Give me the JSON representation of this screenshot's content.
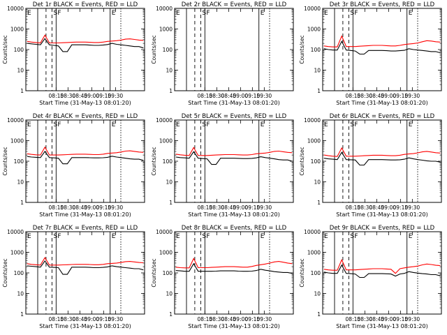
{
  "chart_data": [
    {
      "type": "line",
      "title": "Det 1r BLACK = Events, RED = LLD",
      "ylabel": "Counts/sec",
      "xlabel": "Start Time (31-May-13 08:01:20)",
      "yscale": "log",
      "ylim": [
        1,
        10000
      ],
      "xticks": [
        "08:15",
        "08:30",
        "08:45",
        "09:00",
        "09:15",
        "09:30"
      ],
      "yticks": [
        "1",
        "10",
        "100",
        "1000",
        "10000"
      ],
      "markers": [
        "E",
        "S",
        "F",
        "E"
      ],
      "series": [
        {
          "color": "#000000",
          "values": [
            200,
            190,
            180,
            170,
            340,
            170,
            160,
            150,
            80,
            80,
            170,
            170,
            170,
            170,
            165,
            160,
            160,
            165,
            175,
            200,
            180,
            170,
            160,
            150,
            140,
            140,
            120
          ]
        },
        {
          "color": "#ff0000",
          "values": [
            250,
            230,
            220,
            210,
            500,
            210,
            210,
            210,
            215,
            220,
            225,
            230,
            230,
            230,
            225,
            220,
            220,
            230,
            250,
            260,
            270,
            290,
            320,
            330,
            310,
            290,
            280
          ]
        }
      ]
    },
    {
      "type": "line",
      "title": "Det 2r BLACK = Events, RED = LLD",
      "ylabel": "Counts/sec",
      "xlabel": "Start Time (31-May-13 08:01:20)",
      "yscale": "log",
      "ylim": [
        1,
        10000
      ],
      "xticks": [
        "08:15",
        "08:30",
        "08:45",
        "09:00",
        "09:15",
        "09:30"
      ],
      "yticks": [
        "1",
        "10",
        "100",
        "1000",
        "10000"
      ],
      "markers": [
        "E",
        "S",
        "F",
        "E"
      ],
      "series": []
    },
    {
      "type": "line",
      "title": "Det 3r BLACK = Events, RED = LLD",
      "ylabel": "Counts/sec",
      "xlabel": "Start Time (31-May-13 08:01:20)",
      "yscale": "log",
      "ylim": [
        1,
        10000
      ],
      "xticks": [
        "08:15",
        "08:30",
        "08:45",
        "09:00",
        "09:15",
        "09:30"
      ],
      "yticks": [
        "1",
        "10",
        "100",
        "1000",
        "10000"
      ],
      "markers": [
        "E",
        "S",
        "F",
        "E"
      ],
      "series": [
        {
          "color": "#000000",
          "values": [
            110,
            100,
            95,
            95,
            250,
            95,
            90,
            85,
            60,
            60,
            90,
            90,
            90,
            90,
            88,
            85,
            85,
            88,
            92,
            110,
            100,
            95,
            90,
            85,
            80,
            80,
            70
          ]
        },
        {
          "color": "#ff0000",
          "values": [
            150,
            140,
            135,
            135,
            450,
            140,
            140,
            140,
            145,
            150,
            155,
            160,
            160,
            160,
            155,
            150,
            150,
            160,
            175,
            185,
            195,
            210,
            240,
            270,
            260,
            240,
            230
          ]
        }
      ]
    },
    {
      "type": "line",
      "title": "Det 4r BLACK = Events, RED = LLD",
      "ylabel": "Counts/sec",
      "xlabel": "Start Time (31-May-13 08:01:20)",
      "yscale": "log",
      "ylim": [
        1,
        10000
      ],
      "xticks": [
        "08:15",
        "08:30",
        "08:45",
        "09:00",
        "09:15",
        "09:30"
      ],
      "yticks": [
        "1",
        "10",
        "100",
        "1000",
        "10000"
      ],
      "markers": [
        "E",
        "S",
        "F",
        "E"
      ],
      "series": [
        {
          "color": "#000000",
          "values": [
            170,
            160,
            155,
            150,
            300,
            150,
            145,
            140,
            75,
            75,
            150,
            150,
            150,
            150,
            148,
            145,
            145,
            148,
            155,
            175,
            160,
            150,
            140,
            130,
            125,
            125,
            110
          ]
        },
        {
          "color": "#ff0000",
          "values": [
            230,
            215,
            205,
            200,
            480,
            200,
            200,
            200,
            205,
            210,
            215,
            220,
            220,
            220,
            215,
            210,
            210,
            220,
            240,
            250,
            260,
            280,
            310,
            320,
            300,
            280,
            270
          ]
        }
      ]
    },
    {
      "type": "line",
      "title": "Det 5r BLACK = Events, RED = LLD",
      "ylabel": "Counts/sec",
      "xlabel": "Start Time (31-May-13 08:01:20)",
      "yscale": "log",
      "ylim": [
        1,
        10000
      ],
      "xticks": [
        "08:15",
        "08:30",
        "08:45",
        "09:00",
        "09:15",
        "09:30"
      ],
      "yticks": [
        "1",
        "10",
        "100",
        "1000",
        "10000"
      ],
      "markers": [
        "E",
        "S",
        "F",
        "E"
      ],
      "series": [
        {
          "color": "#000000",
          "values": [
            160,
            150,
            145,
            140,
            290,
            140,
            135,
            130,
            70,
            70,
            140,
            140,
            140,
            140,
            138,
            135,
            135,
            138,
            145,
            165,
            150,
            140,
            130,
            120,
            115,
            115,
            100
          ]
        },
        {
          "color": "#ff0000",
          "values": [
            220,
            205,
            195,
            190,
            460,
            190,
            190,
            190,
            195,
            200,
            205,
            210,
            210,
            210,
            205,
            200,
            200,
            210,
            230,
            240,
            250,
            270,
            300,
            310,
            290,
            270,
            260
          ]
        }
      ]
    },
    {
      "type": "line",
      "title": "Det 6r BLACK = Events, RED = LLD",
      "ylabel": "Counts/sec",
      "xlabel": "Start Time (31-May-13 08:01:20)",
      "yscale": "log",
      "ylim": [
        1,
        10000
      ],
      "xticks": [
        "08:15",
        "08:30",
        "08:45",
        "09:00",
        "09:15",
        "09:30"
      ],
      "yticks": [
        "1",
        "10",
        "100",
        "1000",
        "10000"
      ],
      "markers": [
        "E",
        "S",
        "F",
        "E"
      ],
      "series": [
        {
          "color": "#000000",
          "values": [
            140,
            130,
            125,
            120,
            270,
            120,
            118,
            115,
            65,
            65,
            120,
            120,
            120,
            120,
            118,
            115,
            115,
            118,
            125,
            145,
            130,
            120,
            112,
            105,
            100,
            100,
            90
          ]
        },
        {
          "color": "#ff0000",
          "values": [
            200,
            185,
            175,
            170,
            440,
            175,
            175,
            175,
            180,
            185,
            190,
            195,
            195,
            195,
            190,
            185,
            185,
            195,
            215,
            225,
            235,
            255,
            285,
            300,
            280,
            260,
            250
          ]
        }
      ]
    },
    {
      "type": "line",
      "title": "Det 7r BLACK = Events, RED = LLD",
      "ylabel": "Counts/sec",
      "xlabel": "Start Time (31-May-13 08:01:20)",
      "yscale": "log",
      "ylim": [
        1,
        10000
      ],
      "xticks": [
        "08:15",
        "08:30",
        "08:45",
        "09:00",
        "09:15",
        "09:30"
      ],
      "yticks": [
        "1",
        "10",
        "100",
        "1000",
        "10000"
      ],
      "markers": [
        "E",
        "S",
        "F",
        "E"
      ],
      "series": [
        {
          "color": "#000000",
          "values": [
            220,
            210,
            200,
            190,
            380,
            190,
            185,
            180,
            85,
            85,
            190,
            190,
            190,
            190,
            185,
            180,
            180,
            185,
            195,
            220,
            200,
            190,
            180,
            170,
            160,
            160,
            140
          ]
        },
        {
          "color": "#ff0000",
          "values": [
            280,
            260,
            250,
            240,
            550,
            240,
            240,
            240,
            245,
            250,
            255,
            260,
            260,
            260,
            255,
            250,
            250,
            260,
            280,
            290,
            300,
            320,
            350,
            360,
            340,
            320,
            310
          ]
        }
      ]
    },
    {
      "type": "line",
      "title": "Det 8r BLACK = Events, RED = LLD",
      "ylabel": "Counts/sec",
      "xlabel": "Start Time (31-May-13 08:01:20)",
      "yscale": "log",
      "ylim": [
        1,
        10000
      ],
      "xticks": [
        "08:15",
        "08:30",
        "08:45",
        "09:00",
        "09:15",
        "09:30"
      ],
      "yticks": [
        "1",
        "10",
        "100",
        "1000",
        "10000"
      ],
      "markers": [
        "E",
        "S",
        "F",
        "E"
      ],
      "series": [
        {
          "color": "#000000",
          "values": [
            130,
            125,
            120,
            120,
            280,
            120,
            120,
            120,
            120,
            122,
            125,
            125,
            125,
            125,
            122,
            120,
            120,
            122,
            130,
            150,
            135,
            125,
            115,
            110,
            105,
            105,
            95
          ]
        },
        {
          "color": "#ff0000",
          "values": [
            190,
            180,
            175,
            175,
            500,
            180,
            180,
            180,
            185,
            190,
            195,
            200,
            200,
            200,
            195,
            190,
            190,
            205,
            230,
            250,
            270,
            300,
            340,
            360,
            330,
            300,
            280
          ]
        }
      ]
    },
    {
      "type": "line",
      "title": "Det 9r BLACK = Events, RED = LLD",
      "ylabel": "Counts/sec",
      "xlabel": "Start Time (31-May-13 08:01:20)",
      "yscale": "log",
      "ylim": [
        1,
        10000
      ],
      "xticks": [
        "08:15",
        "08:30",
        "08:45",
        "09:00",
        "09:15",
        "09:30"
      ],
      "yticks": [
        "1",
        "10",
        "100",
        "1000",
        "10000"
      ],
      "markers": [
        "E",
        "S",
        "F",
        "E"
      ],
      "series": [
        {
          "color": "#000000",
          "values": [
            110,
            100,
            95,
            95,
            240,
            95,
            92,
            88,
            60,
            60,
            92,
            92,
            92,
            92,
            90,
            88,
            70,
            88,
            95,
            115,
            105,
            98,
            92,
            88,
            82,
            82,
            72
          ]
        },
        {
          "color": "#ff0000",
          "values": [
            150,
            140,
            135,
            135,
            430,
            140,
            140,
            140,
            145,
            150,
            155,
            160,
            160,
            160,
            155,
            150,
            95,
            160,
            175,
            190,
            200,
            215,
            245,
            270,
            255,
            235,
            225
          ]
        }
      ]
    }
  ]
}
